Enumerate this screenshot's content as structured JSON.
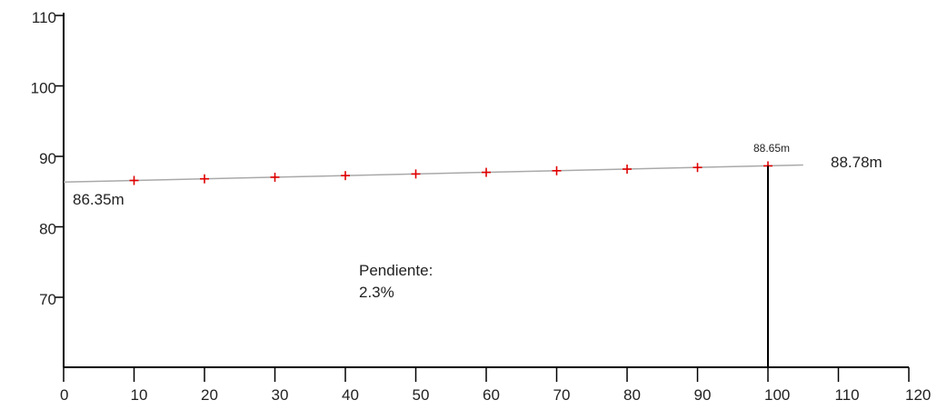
{
  "chart_data": {
    "type": "line",
    "title": "",
    "xlabel": "",
    "ylabel": "",
    "xlim": [
      0,
      120
    ],
    "ylim": [
      60,
      110
    ],
    "x_ticks": [
      "0",
      "10",
      "20",
      "30",
      "40",
      "50",
      "60",
      "70",
      "80",
      "90",
      "100",
      "110",
      "120"
    ],
    "y_ticks": [
      "70",
      "80",
      "90",
      "100",
      "110"
    ],
    "grid": false,
    "legend": "none",
    "line_color": "#a9a9a9",
    "marker_color": "#e00000",
    "series": [
      {
        "line": {
          "x": [
            0,
            105
          ],
          "y": [
            86.35,
            88.78
          ]
        },
        "points": {
          "x": [
            10,
            20,
            30,
            40,
            50,
            60,
            70,
            80,
            90,
            100
          ],
          "y": [
            86.58,
            86.81,
            87.04,
            87.27,
            87.5,
            87.73,
            87.96,
            88.19,
            88.42,
            88.65
          ]
        }
      }
    ],
    "annotations": {
      "start_label": "86.35m",
      "end_label": "88.78m",
      "point_label": "88.65m",
      "slope_title": "Pendiente:",
      "slope_value": "2.3%"
    },
    "drop_line_x": 100
  }
}
